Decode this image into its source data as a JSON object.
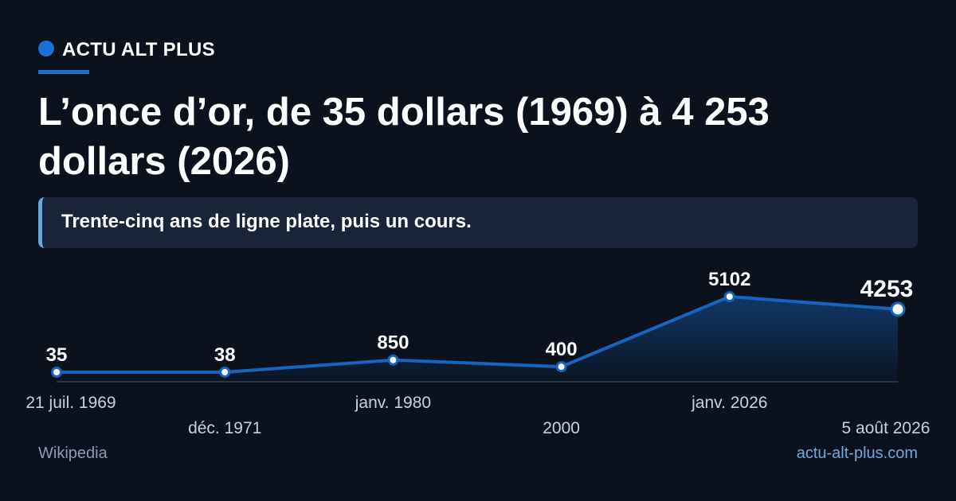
{
  "brand": "ACTU ALT PLUS",
  "chart_data": {
    "type": "line",
    "title": "L’once d’or, de 35 dollars (1969) à 4 253 dollars (2026)",
    "subtitle": "Trente-cinq ans de ligne plate, puis un cours.",
    "categories": [
      "21 juil. 1969",
      "déc. 1971",
      "janv. 1980",
      "2000",
      "janv. 2026",
      "5 août 2026"
    ],
    "series": [
      {
        "color": "#1565c0",
        "values": [
          35,
          38,
          850,
          400,
          5102,
          4253
        ]
      }
    ]
  },
  "footer": {
    "source": "Wikipedia",
    "site": "actu-alt-plus.com"
  }
}
